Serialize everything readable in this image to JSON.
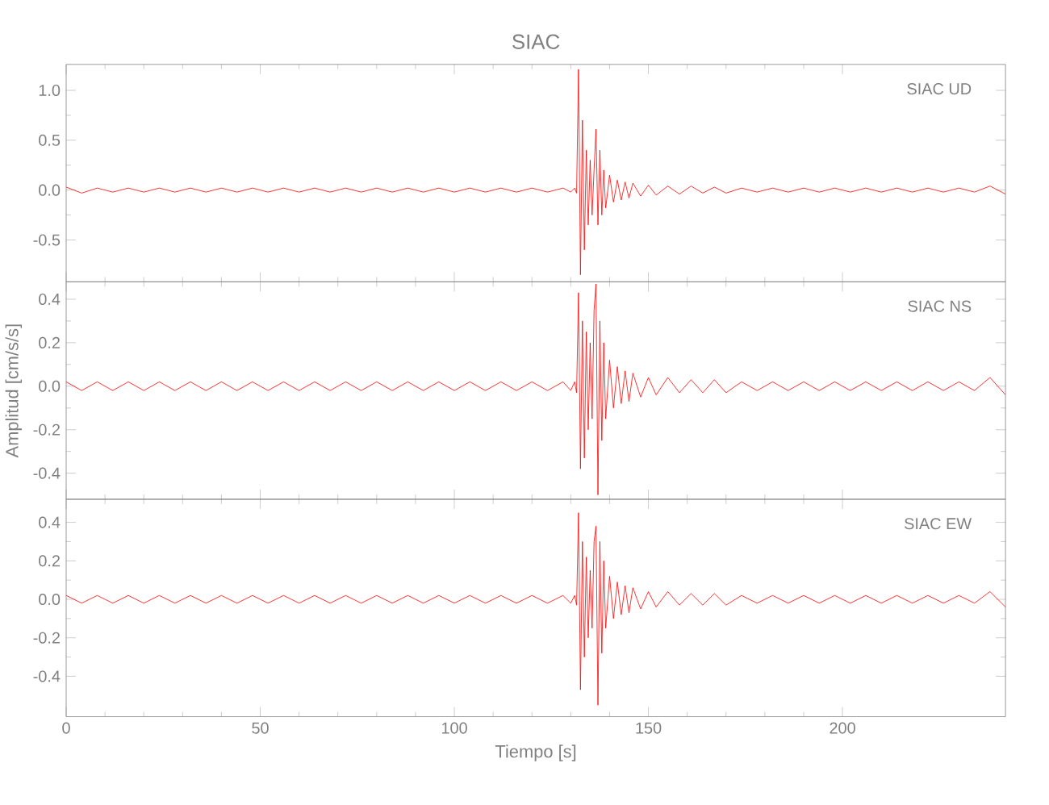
{
  "chart_data": [
    {
      "type": "line",
      "title": "SIAC",
      "annotations": [
        "SIAC UD"
      ],
      "xlim": [
        0,
        242
      ],
      "xticks": [
        0,
        50,
        100,
        150,
        200
      ],
      "ylim": [
        -0.92,
        1.26
      ],
      "yticks": [
        {
          "value": -0.5,
          "label": "-0.5"
        },
        {
          "value": 0,
          "label": "0.0"
        },
        {
          "value": 0.5,
          "label": "0.5"
        },
        {
          "value": 1,
          "label": "1.0"
        }
      ],
      "tick_labels": "y",
      "x": [
        0,
        4,
        8,
        12,
        16,
        20,
        24,
        28,
        32,
        36,
        40,
        44,
        48,
        52,
        56,
        60,
        64,
        68,
        72,
        76,
        80,
        84,
        88,
        92,
        96,
        100,
        104,
        108,
        112,
        116,
        120,
        124,
        128,
        130,
        131,
        131.5,
        132,
        132.5,
        133,
        133.5,
        134,
        134.5,
        135,
        135.5,
        136,
        136.5,
        137,
        137.5,
        138,
        138.5,
        139,
        140,
        141,
        142,
        143,
        144,
        145,
        146,
        148,
        150,
        152,
        155,
        158,
        161,
        164,
        167,
        170,
        174,
        178,
        182,
        186,
        190,
        194,
        198,
        202,
        206,
        210,
        214,
        218,
        222,
        226,
        230,
        234,
        238,
        242
      ],
      "series": [
        {
          "color": "#ff0000",
          "values": [
            0.03,
            -0.03,
            0.02,
            -0.02,
            0.02,
            -0.02,
            0.02,
            -0.02,
            0.02,
            -0.02,
            0.02,
            -0.02,
            0.02,
            -0.02,
            0.02,
            -0.02,
            0.02,
            -0.02,
            0.02,
            -0.02,
            0.02,
            -0.02,
            0.02,
            -0.02,
            0.02,
            -0.02,
            0.02,
            -0.02,
            0.02,
            -0.02,
            0.02,
            -0.02,
            0.02,
            -0.02,
            0.02,
            -0.03,
            1.21,
            -0.85,
            0.7,
            -0.6,
            0.4,
            -0.35,
            0.3,
            -0.25,
            0.2,
            0.61,
            -0.35,
            0.4,
            -0.25,
            0.2,
            -0.18,
            0.15,
            -0.12,
            0.1,
            -0.1,
            0.08,
            -0.08,
            0.07,
            -0.06,
            0.05,
            -0.05,
            0.04,
            -0.04,
            0.04,
            -0.03,
            0.03,
            -0.03,
            0.02,
            -0.02,
            0.02,
            -0.02,
            0.02,
            -0.02,
            0.02,
            -0.02,
            0.02,
            -0.02,
            0.02,
            -0.02,
            0.02,
            -0.02,
            0.02,
            -0.02,
            0.04,
            -0.04
          ]
        }
      ]
    },
    {
      "type": "line",
      "ylabel": "Amplitud [cm/s/s]",
      "annotations": [
        "SIAC NS"
      ],
      "xlim": [
        0,
        242
      ],
      "xticks": [
        0,
        50,
        100,
        150,
        200
      ],
      "ylim": [
        -0.52,
        0.48
      ],
      "yticks": [
        {
          "value": -0.4,
          "label": "-0.4"
        },
        {
          "value": -0.2,
          "label": "-0.2"
        },
        {
          "value": 0,
          "label": "0.0"
        },
        {
          "value": 0.2,
          "label": "0.2"
        },
        {
          "value": 0.4,
          "label": "0.4"
        }
      ],
      "tick_labels": "y",
      "x": [
        0,
        4,
        8,
        12,
        16,
        20,
        24,
        28,
        32,
        36,
        40,
        44,
        48,
        52,
        56,
        60,
        64,
        68,
        72,
        76,
        80,
        84,
        88,
        92,
        96,
        100,
        104,
        108,
        112,
        116,
        120,
        124,
        128,
        130,
        131,
        131.5,
        132,
        132.5,
        133,
        133.5,
        134,
        134.5,
        135,
        135.5,
        136,
        136.5,
        137,
        137.5,
        138,
        138.5,
        139,
        140,
        141,
        142,
        143,
        144,
        145,
        146,
        148,
        150,
        152,
        155,
        158,
        161,
        164,
        167,
        170,
        174,
        178,
        182,
        186,
        190,
        194,
        198,
        202,
        206,
        210,
        214,
        218,
        222,
        226,
        230,
        234,
        238,
        242
      ],
      "series": [
        {
          "color": "#ff0000",
          "values": [
            0.02,
            -0.02,
            0.02,
            -0.02,
            0.02,
            -0.02,
            0.02,
            -0.02,
            0.02,
            -0.02,
            0.02,
            -0.02,
            0.02,
            -0.02,
            0.02,
            -0.02,
            0.02,
            -0.02,
            0.02,
            -0.02,
            0.02,
            -0.02,
            0.02,
            -0.02,
            0.02,
            -0.02,
            0.02,
            -0.02,
            0.02,
            -0.02,
            0.02,
            -0.02,
            0.02,
            -0.02,
            0.02,
            -0.03,
            0.43,
            -0.38,
            0.3,
            -0.33,
            0.25,
            -0.2,
            0.2,
            -0.15,
            0.35,
            0.47,
            -0.5,
            0.3,
            -0.25,
            0.2,
            -0.15,
            0.12,
            -0.1,
            0.09,
            -0.08,
            0.07,
            -0.07,
            0.06,
            -0.05,
            0.04,
            -0.04,
            0.04,
            -0.03,
            0.03,
            -0.03,
            0.03,
            -0.03,
            0.02,
            -0.02,
            0.02,
            -0.02,
            0.02,
            -0.02,
            0.02,
            -0.02,
            0.02,
            -0.02,
            0.02,
            -0.02,
            0.02,
            -0.02,
            0.02,
            -0.02,
            0.04,
            -0.04
          ]
        }
      ]
    },
    {
      "type": "line",
      "xlabel": "Tiempo [s]",
      "annotations": [
        "SIAC EW"
      ],
      "xlim": [
        0,
        242
      ],
      "xticks": [
        0,
        50,
        100,
        150,
        200
      ],
      "ylim": [
        -0.61,
        0.52
      ],
      "yticks": [
        {
          "value": -0.4,
          "label": "-0.4"
        },
        {
          "value": -0.2,
          "label": "-0.2"
        },
        {
          "value": 0,
          "label": "0.0"
        },
        {
          "value": 0.2,
          "label": "0.2"
        },
        {
          "value": 0.4,
          "label": "0.4"
        }
      ],
      "x": [
        0,
        4,
        8,
        12,
        16,
        20,
        24,
        28,
        32,
        36,
        40,
        44,
        48,
        52,
        56,
        60,
        64,
        68,
        72,
        76,
        80,
        84,
        88,
        92,
        96,
        100,
        104,
        108,
        112,
        116,
        120,
        124,
        128,
        130,
        131,
        131.5,
        132,
        132.5,
        133,
        133.5,
        134,
        134.5,
        135,
        135.5,
        136,
        136.5,
        137,
        137.5,
        138,
        138.5,
        139,
        140,
        141,
        142,
        143,
        144,
        145,
        146,
        148,
        150,
        152,
        155,
        158,
        161,
        164,
        167,
        170,
        174,
        178,
        182,
        186,
        190,
        194,
        198,
        202,
        206,
        210,
        214,
        218,
        222,
        226,
        230,
        234,
        238,
        242
      ],
      "series": [
        {
          "color": "#ff0000",
          "values": [
            0.02,
            -0.02,
            0.02,
            -0.02,
            0.02,
            -0.02,
            0.02,
            -0.02,
            0.02,
            -0.02,
            0.02,
            -0.02,
            0.02,
            -0.02,
            0.02,
            -0.02,
            0.02,
            -0.02,
            0.02,
            -0.02,
            0.02,
            -0.02,
            0.02,
            -0.02,
            0.02,
            -0.02,
            0.02,
            -0.02,
            0.02,
            -0.02,
            0.02,
            -0.02,
            0.02,
            -0.02,
            0.02,
            -0.03,
            0.45,
            -0.47,
            0.3,
            -0.3,
            0.22,
            -0.2,
            0.15,
            -0.15,
            0.3,
            0.38,
            -0.55,
            0.3,
            -0.28,
            0.2,
            -0.15,
            0.12,
            -0.1,
            0.09,
            -0.08,
            0.07,
            -0.07,
            0.06,
            -0.05,
            0.04,
            -0.04,
            0.04,
            -0.03,
            0.03,
            -0.03,
            0.03,
            -0.03,
            0.02,
            -0.02,
            0.02,
            -0.02,
            0.02,
            -0.02,
            0.02,
            -0.02,
            0.02,
            -0.02,
            0.02,
            -0.02,
            0.02,
            -0.02,
            0.02,
            -0.02,
            0.04,
            -0.04
          ]
        }
      ]
    }
  ]
}
